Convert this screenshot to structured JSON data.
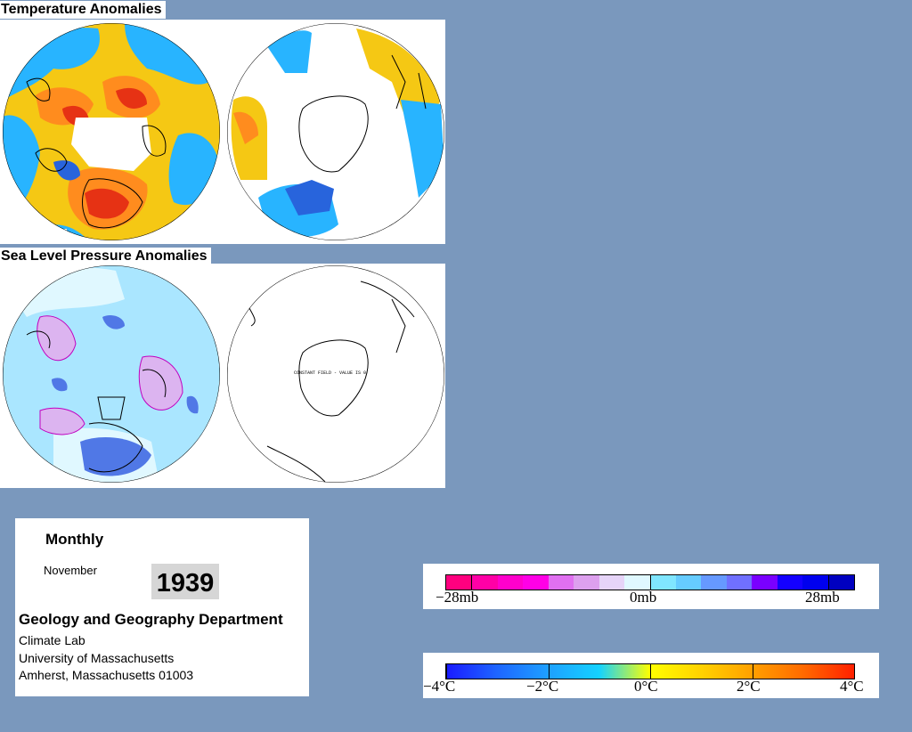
{
  "temperature": {
    "title": "Temperature Anomalies"
  },
  "pressure": {
    "title": "Sea Level Pressure Anomalies",
    "south_note": "CONSTANT FIELD - VALUE IS 0"
  },
  "info": {
    "period": "Monthly",
    "month": "November",
    "year": "1939",
    "department": "Geology and Geography Department",
    "lab": "Climate Lab",
    "university": "University of Massachusetts",
    "address": "Amherst, Massachusetts 01003"
  },
  "pressure_legend": {
    "unit": "mb",
    "labels": [
      "−28mb",
      "0mb",
      "28mb"
    ],
    "colors": [
      "#ff007f",
      "#ff00a6",
      "#ff00cc",
      "#ff00e6",
      "#e070f0",
      "#dda0ee",
      "#e6d4f8",
      "#e0f8ff",
      "#80e6ff",
      "#66ccff",
      "#6699ff",
      "#7070ff",
      "#7a00ff",
      "#1400ff",
      "#0000ee",
      "#0000c0"
    ]
  },
  "temperature_legend": {
    "unit": "°C",
    "labels": [
      "−4°C",
      "−2°C",
      "0°C",
      "2°C",
      "4°C"
    ],
    "stops": [
      "#1a1aff",
      "#1e66ff",
      "#1ea0ff",
      "#14d2ff",
      "#ffff00",
      "#ffd200",
      "#ffa000",
      "#ff6a00",
      "#ff2000"
    ]
  },
  "colors": {
    "background": "#7a98bd",
    "warm": "#ff8c1e",
    "hot": "#e63214",
    "neutral_warm": "#f5c814",
    "cool": "#28b4ff",
    "cold": "#2864dc",
    "slp_light": "#aae6ff",
    "slp_negative": "#dcb4f0",
    "slp_positive": "#5078e6"
  }
}
